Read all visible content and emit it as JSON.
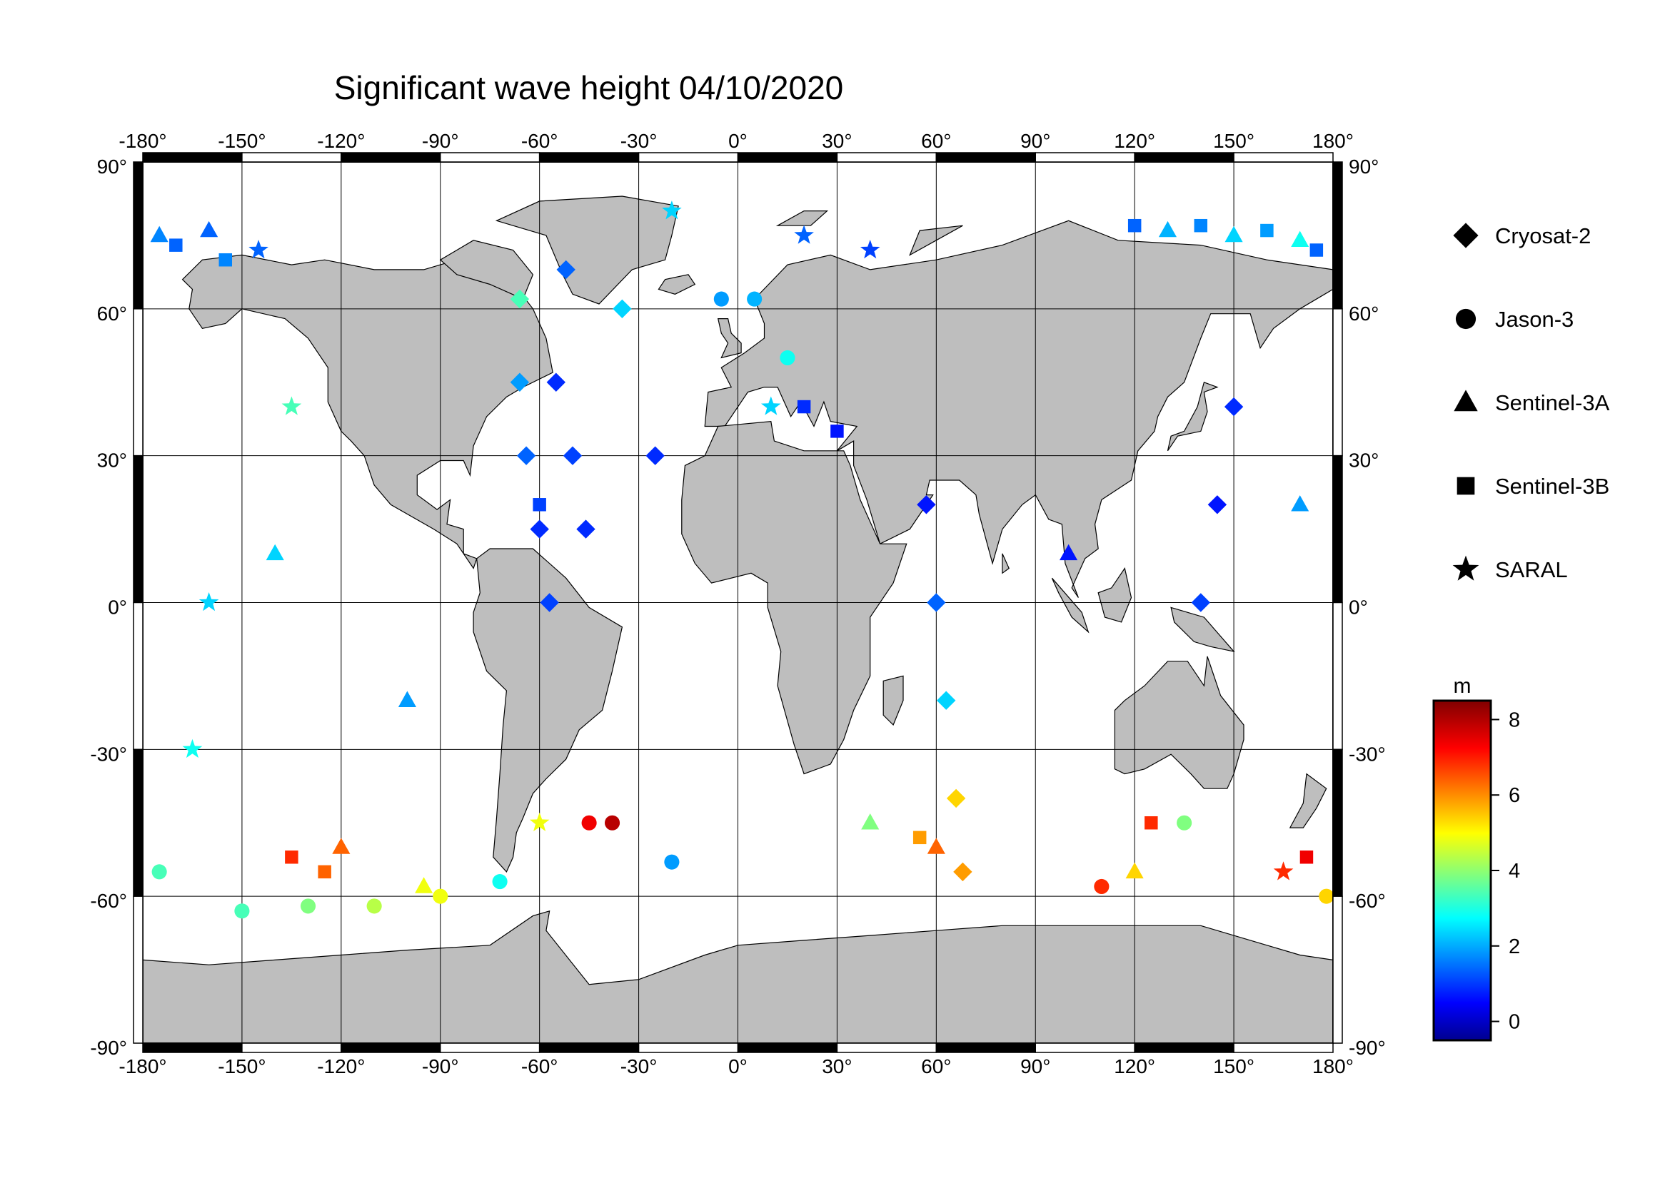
{
  "title": "Significant wave height 04/10/2020",
  "map": {
    "projection": "equirectangular",
    "lon_range": [
      -180,
      180
    ],
    "lat_range": [
      -90,
      90
    ],
    "lon_ticks": [
      "-180°",
      "-150°",
      "-120°",
      "-90°",
      "-60°",
      "-30°",
      "0°",
      "30°",
      "60°",
      "90°",
      "120°",
      "150°",
      "180°"
    ],
    "lat_ticks": [
      "90°",
      "60°",
      "30°",
      "0°",
      "-30°",
      "-60°",
      "-90°"
    ],
    "grid": true,
    "ocean_color": "#ffffff",
    "land_color": "#bebebe"
  },
  "legend": {
    "placement": "right",
    "items": [
      {
        "label": "Cryosat-2",
        "symbol": "diamond"
      },
      {
        "label": "Jason-3",
        "symbol": "circle"
      },
      {
        "label": "Sentinel-3A",
        "symbol": "triangle"
      },
      {
        "label": "Sentinel-3B",
        "symbol": "square"
      },
      {
        "label": "SARAL",
        "symbol": "star"
      }
    ]
  },
  "colorbar": {
    "unit": "m",
    "range": [
      -0.5,
      8.5
    ],
    "ticks": [
      0,
      2,
      4,
      6,
      8
    ],
    "colormap": "jet",
    "colors": [
      "#00008f",
      "#0000ff",
      "#00ffff",
      "#ffff00",
      "#ff0000",
      "#800000"
    ]
  },
  "chart_data": {
    "type": "scatter",
    "title": "Significant wave height 04/10/2020",
    "xlabel": "",
    "ylabel": "",
    "xlim": [
      -180,
      180
    ],
    "ylim": [
      -90,
      90
    ],
    "value_unit": "m",
    "series": [
      {
        "name": "Cryosat-2",
        "marker": "diamond",
        "points": [
          [
            -66,
            62,
            3.5
          ],
          [
            -66,
            45,
            2.0
          ],
          [
            -64,
            30,
            1.5
          ],
          [
            -60,
            15,
            1.0
          ],
          [
            -57,
            0,
            1.2
          ],
          [
            -52,
            68,
            1.5
          ],
          [
            -55,
            45,
            1.0
          ],
          [
            -50,
            30,
            1.2
          ],
          [
            -46,
            15,
            1.0
          ],
          [
            -35,
            60,
            2.5
          ],
          [
            -25,
            30,
            1.0
          ],
          [
            57,
            20,
            0.8
          ],
          [
            60,
            0,
            1.5
          ],
          [
            63,
            -20,
            2.5
          ],
          [
            66,
            -40,
            5.5
          ],
          [
            68,
            -55,
            6.0
          ],
          [
            150,
            40,
            1.0
          ],
          [
            145,
            20,
            0.8
          ],
          [
            140,
            0,
            1.2
          ]
        ]
      },
      {
        "name": "Jason-3",
        "marker": "circle",
        "points": [
          [
            -150,
            -63,
            3.5
          ],
          [
            -130,
            -62,
            4.0
          ],
          [
            -110,
            -62,
            4.5
          ],
          [
            -90,
            -60,
            5.0
          ],
          [
            -72,
            -57,
            3.0
          ],
          [
            -45,
            -45,
            7.5
          ],
          [
            -38,
            -45,
            8.0
          ],
          [
            -20,
            -53,
            2.0
          ],
          [
            15,
            50,
            3.0
          ],
          [
            5,
            62,
            2.2
          ],
          [
            -5,
            62,
            2.0
          ],
          [
            110,
            -58,
            7.0
          ],
          [
            135,
            -45,
            4.0
          ],
          [
            178,
            -60,
            5.5
          ],
          [
            -175,
            -55,
            3.5
          ]
        ]
      },
      {
        "name": "Sentinel-3A",
        "marker": "triangle",
        "points": [
          [
            -175,
            75,
            1.8
          ],
          [
            -160,
            76,
            1.5
          ],
          [
            130,
            76,
            2.2
          ],
          [
            150,
            75,
            2.5
          ],
          [
            170,
            74,
            3.0
          ],
          [
            -120,
            -50,
            6.5
          ],
          [
            -95,
            -58,
            5.0
          ],
          [
            40,
            -45,
            4.0
          ],
          [
            60,
            -50,
            6.5
          ],
          [
            120,
            -55,
            5.5
          ],
          [
            -140,
            10,
            2.5
          ],
          [
            -100,
            -20,
            2.0
          ],
          [
            100,
            10,
            0.8
          ],
          [
            170,
            20,
            2.0
          ]
        ]
      },
      {
        "name": "Sentinel-3B",
        "marker": "square",
        "points": [
          [
            -170,
            73,
            1.5
          ],
          [
            -155,
            70,
            1.8
          ],
          [
            120,
            77,
            1.5
          ],
          [
            140,
            77,
            1.8
          ],
          [
            160,
            76,
            2.0
          ],
          [
            175,
            72,
            1.5
          ],
          [
            -135,
            -52,
            7.0
          ],
          [
            -125,
            -55,
            6.5
          ],
          [
            55,
            -48,
            6.0
          ],
          [
            125,
            -45,
            7.0
          ],
          [
            172,
            -52,
            7.5
          ],
          [
            -60,
            20,
            1.2
          ],
          [
            20,
            40,
            1.0
          ],
          [
            30,
            35,
            0.8
          ]
        ]
      },
      {
        "name": "SARAL",
        "marker": "star",
        "points": [
          [
            -145,
            72,
            1.5
          ],
          [
            -135,
            40,
            3.5
          ],
          [
            -160,
            0,
            2.5
          ],
          [
            -165,
            -30,
            3.0
          ],
          [
            -20,
            80,
            2.5
          ],
          [
            20,
            75,
            1.5
          ],
          [
            40,
            72,
            1.2
          ],
          [
            10,
            40,
            2.5
          ],
          [
            165,
            -55,
            7.0
          ],
          [
            -60,
            -45,
            5.0
          ]
        ]
      }
    ]
  }
}
